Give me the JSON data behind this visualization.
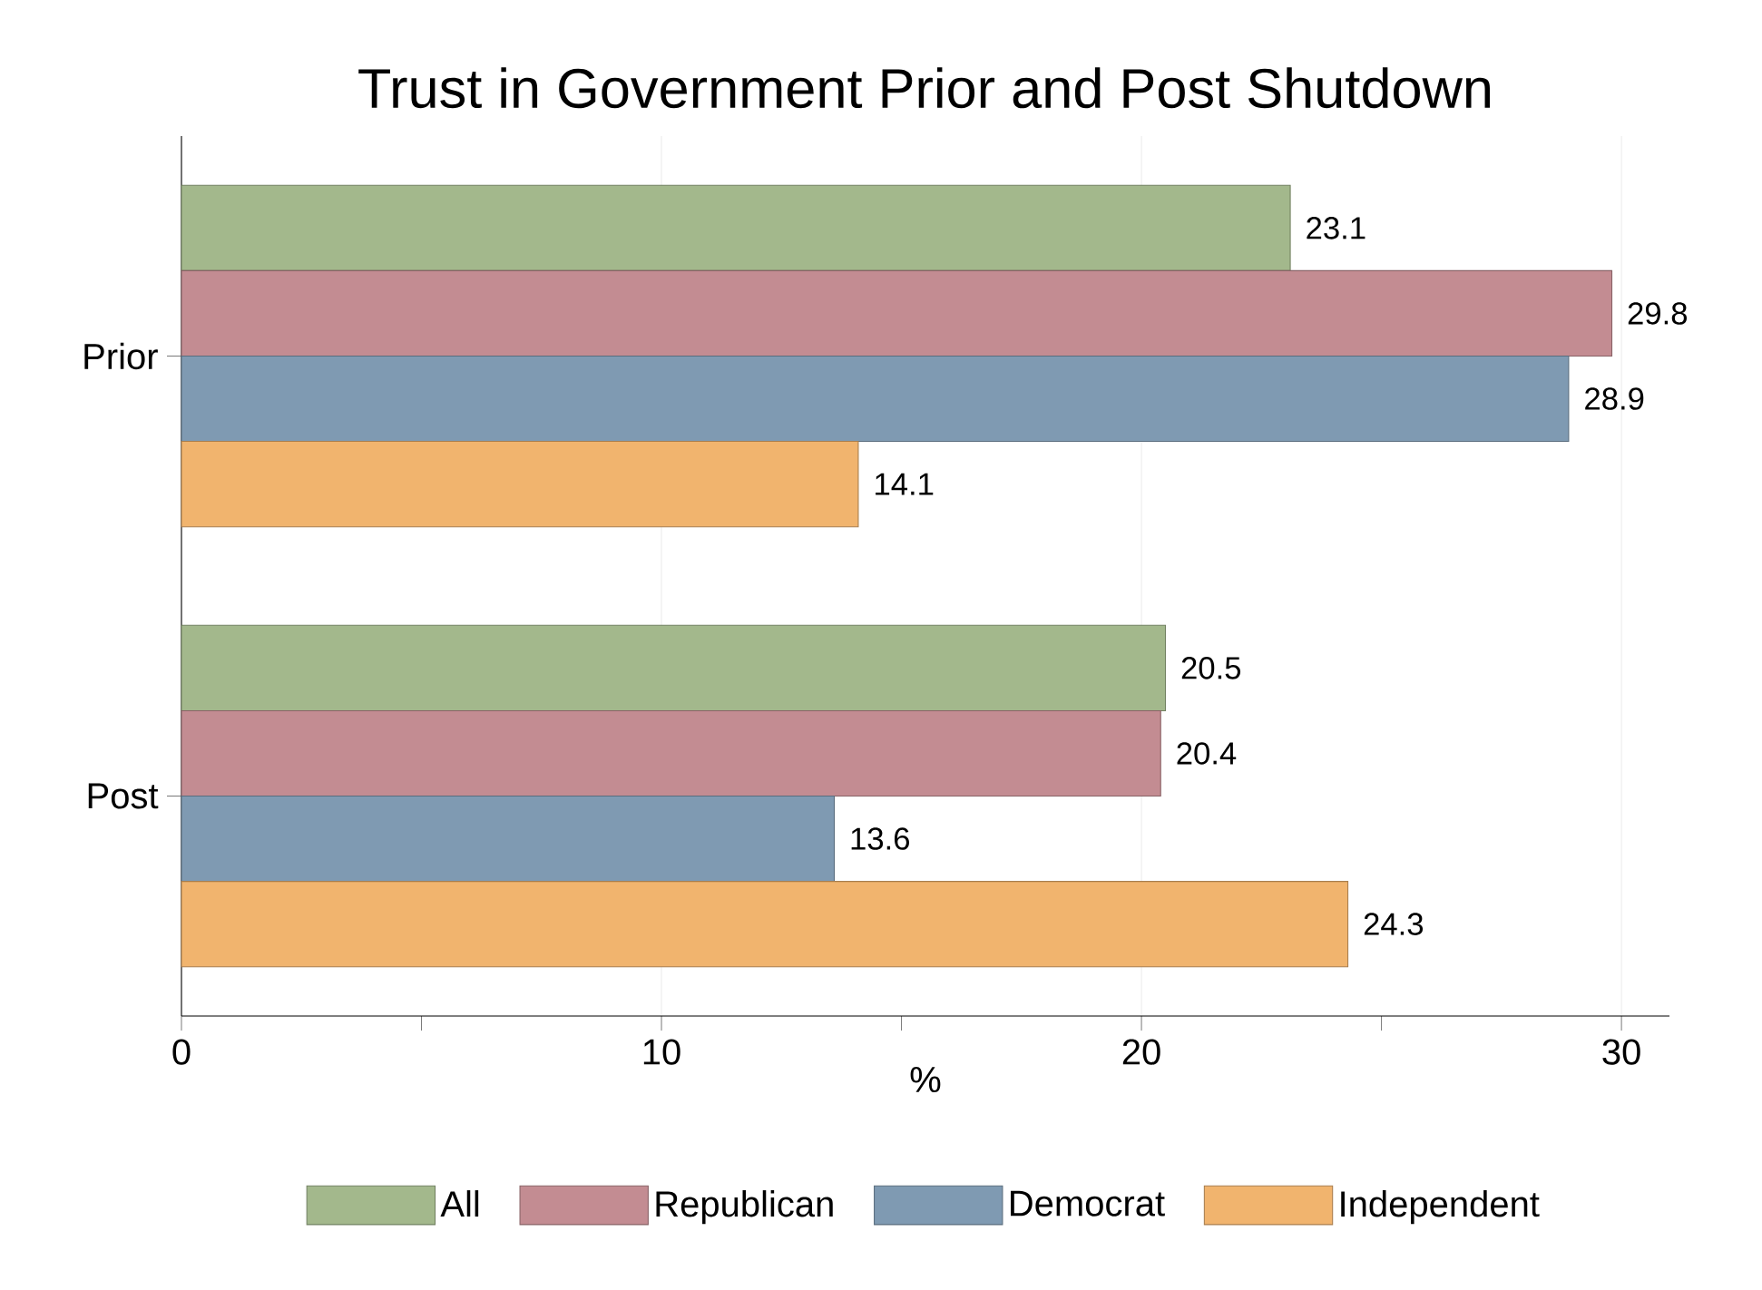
{
  "chart_data": {
    "type": "bar",
    "orientation": "horizontal",
    "title": "Trust in Government Prior and Post Shutdown",
    "xlabel": "%",
    "categories": [
      "Prior",
      "Post"
    ],
    "series": [
      {
        "name": "All",
        "color": "#a3b88c",
        "values": [
          23.1,
          20.5
        ]
      },
      {
        "name": "Republican",
        "color": "#c38c92",
        "values": [
          29.8,
          20.4
        ]
      },
      {
        "name": "Democrat",
        "color": "#7f9ab2",
        "values": [
          28.9,
          13.6
        ]
      },
      {
        "name": "Independent",
        "color": "#f1b46e",
        "values": [
          14.1,
          24.3
        ]
      }
    ],
    "xlim": [
      0,
      31
    ],
    "xticks": [
      0,
      {
        "value": 5,
        "label": null
      },
      10,
      {
        "value": 15,
        "label": null
      },
      20,
      {
        "value": 25,
        "label": null
      },
      30
    ],
    "grid": "x",
    "legend": "bottom",
    "data_labels": true
  }
}
